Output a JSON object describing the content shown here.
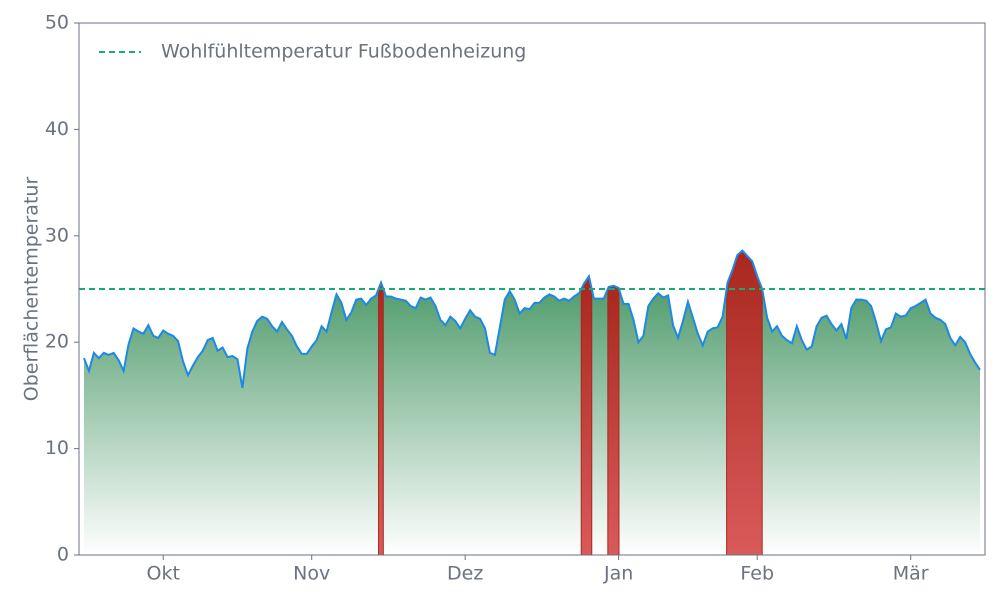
{
  "chart_data": {
    "type": "area",
    "y_label": "Oberflächentemperatur",
    "ylim": [
      0,
      50
    ],
    "yticks": [
      0,
      10,
      20,
      30,
      40,
      50
    ],
    "categories": [
      null,
      null,
      null,
      null,
      null,
      null,
      null,
      null,
      null,
      null,
      null,
      null,
      null,
      null,
      null,
      null,
      "Okt",
      null,
      null,
      null,
      null,
      null,
      null,
      null,
      null,
      null,
      null,
      null,
      null,
      null,
      null,
      null,
      null,
      null,
      null,
      null,
      null,
      null,
      null,
      null,
      null,
      null,
      null,
      null,
      null,
      null,
      "Nov",
      null,
      null,
      null,
      null,
      null,
      null,
      null,
      null,
      null,
      null,
      null,
      null,
      null,
      null,
      null,
      null,
      null,
      null,
      null,
      null,
      null,
      null,
      null,
      null,
      null,
      null,
      null,
      null,
      null,
      null,
      "Dez",
      null,
      null,
      null,
      null,
      null,
      null,
      null,
      null,
      null,
      null,
      null,
      null,
      null,
      null,
      null,
      null,
      null,
      null,
      null,
      null,
      null,
      null,
      null,
      null,
      null,
      null,
      null,
      null,
      null,
      null,
      "Jan",
      null,
      null,
      null,
      null,
      null,
      null,
      null,
      null,
      null,
      null,
      null,
      null,
      null,
      null,
      null,
      null,
      null,
      null,
      null,
      null,
      null,
      null,
      null,
      null,
      null,
      null,
      null,
      "Feb",
      null,
      null,
      null,
      null,
      null,
      null,
      null,
      null,
      null,
      null,
      null,
      null,
      null,
      null,
      null,
      null,
      null,
      null,
      null,
      null,
      null,
      null,
      null,
      null,
      null,
      null,
      null,
      null,
      null,
      null,
      "Mär",
      null,
      null,
      null,
      null,
      null,
      null,
      null,
      null,
      null,
      null,
      null,
      null,
      null,
      null
    ],
    "series": [
      {
        "color": "#1e88e5",
        "fill_color": "#3a8f5a",
        "over_color": "#a8281e",
        "values": [
          18.5,
          17.3,
          19.0,
          18.5,
          19.0,
          18.8,
          19.0,
          18.3,
          17.3,
          19.8,
          21.3,
          21.0,
          20.8,
          21.6,
          20.6,
          20.4,
          21.1,
          20.8,
          20.6,
          20.1,
          18.2,
          16.9,
          17.8,
          18.6,
          19.2,
          20.2,
          20.4,
          19.2,
          19.5,
          18.6,
          18.7,
          18.4,
          15.7,
          19.4,
          21.0,
          22.0,
          22.4,
          22.2,
          21.5,
          21.0,
          21.9,
          21.2,
          20.6,
          19.6,
          18.9,
          18.9,
          19.6,
          20.2,
          21.5,
          21.0,
          22.8,
          24.5,
          23.7,
          22.1,
          22.8,
          24.0,
          24.1,
          23.5,
          24.1,
          24.4,
          25.6,
          24.3,
          24.3,
          24.1,
          24.0,
          23.9,
          23.4,
          23.2,
          24.2,
          24.0,
          24.2,
          23.4,
          22.1,
          21.6,
          22.4,
          22.0,
          21.3,
          22.2,
          23.0,
          22.4,
          22.2,
          21.3,
          19.0,
          18.8,
          21.4,
          24.0,
          24.8,
          24.0,
          22.7,
          23.2,
          23.1,
          23.7,
          23.7,
          24.2,
          24.5,
          24.3,
          23.9,
          24.1,
          23.9,
          24.3,
          24.6,
          25.5,
          26.2,
          24.1,
          24.1,
          24.1,
          25.2,
          25.3,
          25.1,
          23.6,
          23.6,
          22.1,
          20.0,
          20.6,
          23.4,
          24.1,
          24.6,
          24.2,
          24.4,
          21.6,
          20.4,
          22.0,
          23.8,
          22.3,
          20.8,
          19.7,
          21.0,
          21.3,
          21.4,
          22.4,
          25.6,
          26.8,
          28.2,
          28.6,
          28.1,
          27.6,
          26.2,
          25.0,
          22.3,
          21.0,
          21.5,
          20.6,
          20.2,
          19.9,
          21.5,
          20.2,
          19.3,
          19.6,
          21.5,
          22.3,
          22.5,
          21.7,
          21.1,
          21.7,
          20.3,
          23.2,
          24.0,
          24.0,
          23.9,
          23.4,
          21.9,
          20.1,
          21.2,
          21.4,
          22.7,
          22.4,
          22.5,
          23.2,
          23.4,
          23.7,
          24.0,
          22.7,
          22.3,
          22.1,
          21.7,
          20.4,
          19.7,
          20.5,
          20.0,
          18.9,
          18.1,
          17.4
        ]
      }
    ],
    "threshold": {
      "value": 25,
      "label": "Wohlfühltemperatur Fußbodenheizung",
      "color": "#1aaa7a"
    },
    "legend": "upper left"
  }
}
